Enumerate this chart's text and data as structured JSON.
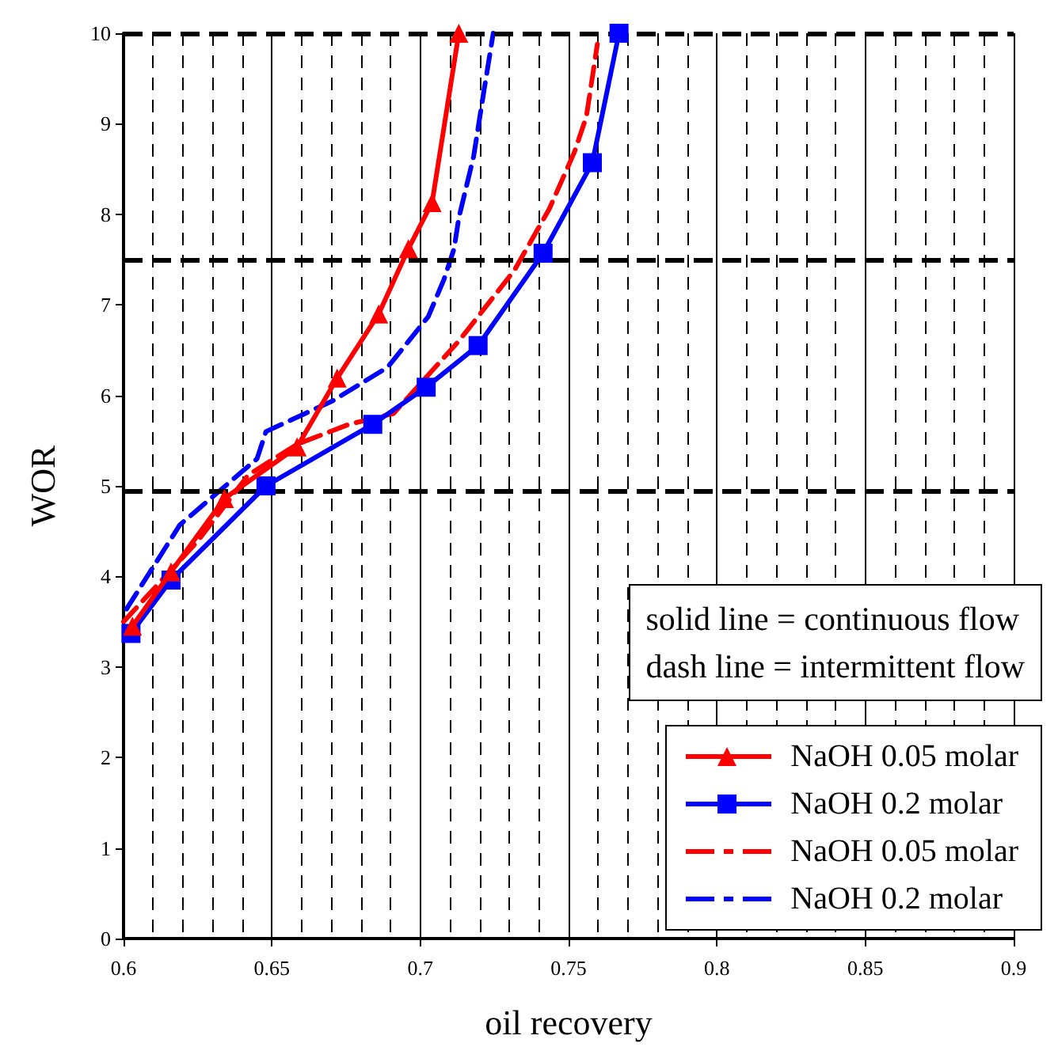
{
  "chart_data": {
    "type": "line",
    "xlabel": "oil recovery",
    "ylabel": "WOR",
    "xlim": [
      0.6,
      0.9
    ],
    "xticks": [
      0.6,
      0.65,
      0.7,
      0.75,
      0.8,
      0.85,
      0.9
    ],
    "ylim": [
      0,
      10
    ],
    "yticks": [
      0,
      1,
      2,
      3,
      4,
      5,
      6,
      7,
      8,
      9,
      10
    ],
    "grid": "x",
    "legend": "bottom right",
    "annotations": [
      "solid line = continuous flow",
      "dash line = intermittent flow"
    ],
    "ref_lines": [
      {
        "axis": "y",
        "value": 4.95,
        "color": "#000000",
        "line_style": "dashed"
      },
      {
        "axis": "y",
        "value": 7.5,
        "color": "#000000",
        "line_style": "dashed"
      },
      {
        "axis": "y",
        "value": 10,
        "color": "#000000",
        "line_style": "dashed"
      }
    ],
    "series": [
      {
        "name": "NaOH 0.05 molar",
        "color": "#ff0000",
        "marker": "triangle",
        "line_style": "solid",
        "x": [
          0.603,
          0.616,
          0.634,
          0.6585,
          0.672,
          0.686,
          0.696,
          0.704,
          0.713
        ],
        "values": [
          3.45,
          4.05,
          4.86,
          5.43,
          6.19,
          6.9,
          7.62,
          8.13,
          10.0
        ]
      },
      {
        "name": "NaOH 0.2 molar",
        "color": "#0000ff",
        "marker": "square",
        "line_style": "solid",
        "x": [
          0.6025,
          0.616,
          0.648,
          0.684,
          0.702,
          0.7195,
          0.7414,
          0.758,
          0.767
        ],
        "values": [
          3.37,
          3.96,
          5.0,
          5.68,
          6.09,
          6.55,
          7.57,
          8.57,
          10.0
        ]
      },
      {
        "name": "NaOH 0.05 molar",
        "color": "#ff0000",
        "marker": "none",
        "line_style": "dashed",
        "x": [
          0.6,
          0.625,
          0.642,
          0.6585,
          0.676,
          0.691,
          0.713,
          0.7317,
          0.7435,
          0.752,
          0.756,
          0.7597
        ],
        "values": [
          3.5,
          4.39,
          5.12,
          5.46,
          5.68,
          5.8,
          6.6,
          7.38,
          8.06,
          8.69,
          9.08,
          9.88
        ]
      },
      {
        "name": "NaOH 0.2 molar",
        "color": "#0000ff",
        "marker": "none",
        "line_style": "dashed",
        "x": [
          0.601,
          0.619,
          0.645,
          0.648,
          0.6705,
          0.689,
          0.7027,
          0.708,
          0.7114,
          0.713,
          0.718,
          0.7215,
          0.7246
        ],
        "values": [
          3.64,
          4.57,
          5.3,
          5.6,
          5.94,
          6.31,
          6.87,
          7.28,
          7.62,
          7.96,
          8.64,
          9.37,
          10.0
        ]
      }
    ]
  }
}
